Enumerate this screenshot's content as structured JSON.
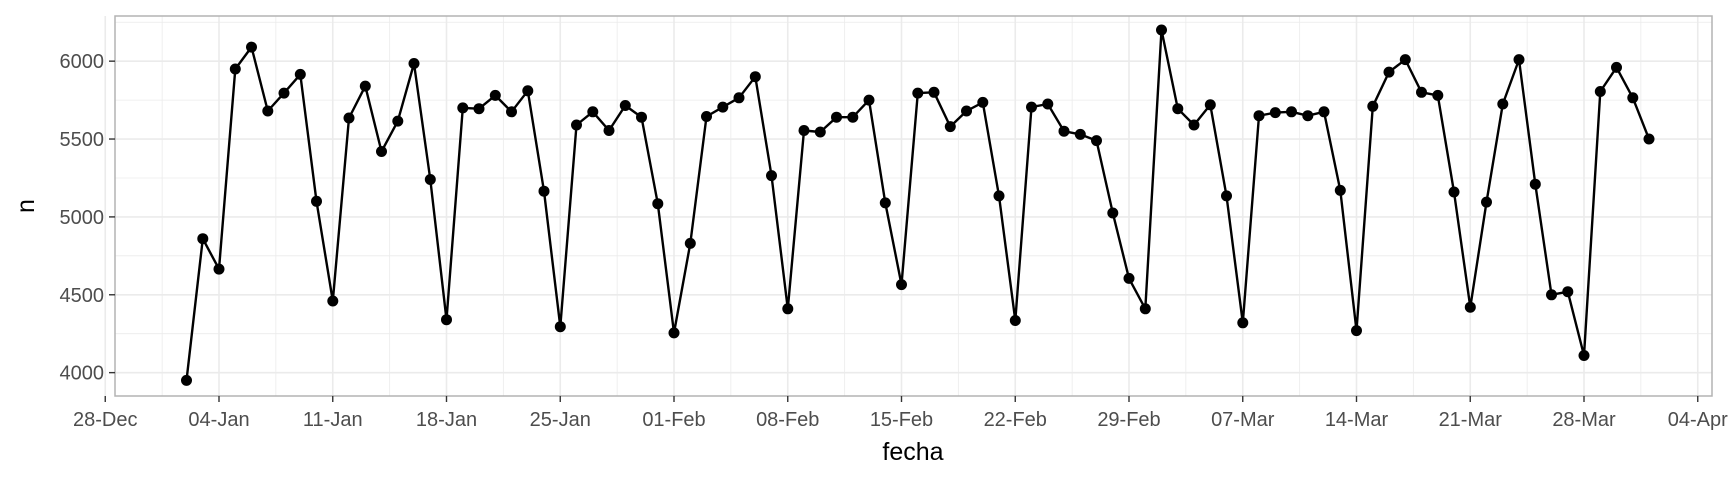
{
  "chart_data": {
    "type": "line",
    "xlabel": "fecha",
    "ylabel": "n",
    "x_start": "2021-01-02",
    "x_tick_labels": [
      "28-Dec",
      "04-Jan",
      "11-Jan",
      "18-Jan",
      "25-Jan",
      "01-Feb",
      "08-Feb",
      "15-Feb",
      "22-Feb",
      "29-Feb",
      "07-Mar",
      "14-Mar",
      "21-Mar",
      "28-Mar",
      "04-Apr"
    ],
    "y_ticks": [
      4000,
      4500,
      5000,
      5500,
      6000
    ],
    "ylim": [
      3850,
      6290
    ],
    "grid": true,
    "markers": true,
    "colors": {
      "line": "#000000",
      "grid": "#ebebeb",
      "panel_border": "#b3b3b3"
    },
    "values": [
      3950,
      4860,
      4665,
      5950,
      6090,
      5680,
      5795,
      5915,
      5100,
      4460,
      5635,
      5840,
      5420,
      5615,
      5985,
      5240,
      4340,
      5700,
      5695,
      5780,
      5675,
      5810,
      5165,
      4295,
      5590,
      5675,
      5555,
      5715,
      5640,
      5085,
      4255,
      4830,
      5645,
      5705,
      5765,
      5900,
      5265,
      4410,
      5555,
      5545,
      5640,
      5640,
      5750,
      5090,
      4565,
      5795,
      5800,
      5580,
      5680,
      5735,
      5135,
      4335,
      5705,
      5725,
      5550,
      5530,
      5490,
      5025,
      4605,
      4410,
      6200,
      5695,
      5590,
      5720,
      5135,
      4320,
      5650,
      5670,
      5675,
      5650,
      5675,
      5170,
      4270,
      5710,
      5930,
      6010,
      5800,
      5780,
      5160,
      4420,
      5095,
      5725,
      6010,
      5210,
      4500,
      4520,
      4110,
      5805,
      5960,
      5765,
      5500
    ]
  }
}
